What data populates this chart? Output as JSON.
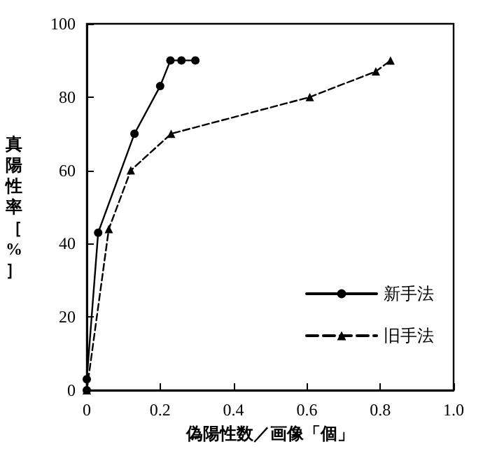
{
  "chart_data": {
    "type": "line",
    "xlabel": "偽陽性数／画像「個」",
    "ylabel": "真陽性率［%］",
    "xlim": [
      0,
      1.0
    ],
    "xticks": [
      0,
      0.2,
      0.4,
      0.6,
      0.8,
      {
        "value": 1,
        "label": "1.0"
      }
    ],
    "ylim": [
      0,
      100
    ],
    "yticks": [
      0,
      20,
      40,
      60,
      80,
      100
    ],
    "grid": false,
    "legend": "bottom right",
    "series": [
      {
        "name": "新手法",
        "color": "#000000",
        "marker": "circle",
        "line_style": "solid",
        "x": [
          0,
          0,
          0.031,
          0.13,
          0.2,
          0.228,
          0.258,
          0.296
        ],
        "values": [
          0,
          3,
          43,
          70,
          83,
          90,
          90,
          90
        ]
      },
      {
        "name": "旧手法",
        "color": "#000000",
        "marker": "triangle",
        "line_style": "dashed",
        "x": [
          0,
          0.06,
          0.12,
          0.23,
          0.608,
          0.788,
          0.828
        ],
        "values": [
          0,
          44,
          60,
          70,
          80,
          87,
          90
        ]
      }
    ]
  }
}
